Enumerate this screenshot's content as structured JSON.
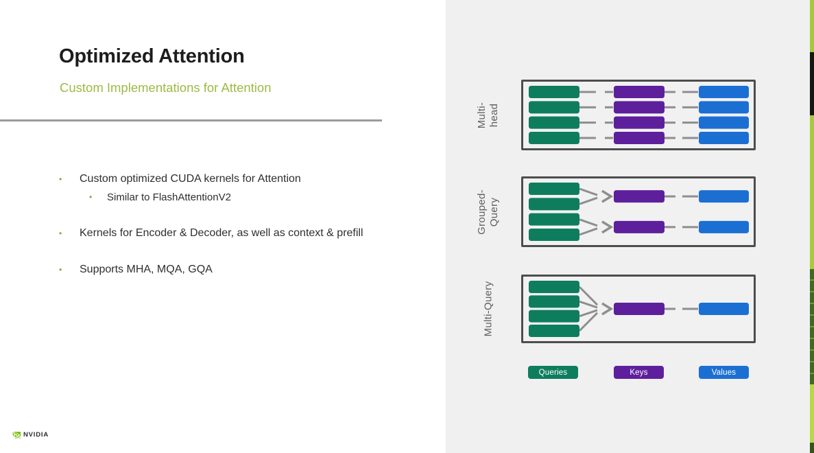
{
  "slide": {
    "title": "Optimized Attention",
    "subtitle": "Custom Implementations for Attention",
    "bullets": [
      {
        "level": 1,
        "text": "Custom optimized CUDA kernels for Attention"
      },
      {
        "level": 2,
        "text": "Similar to FlashAttentionV2"
      },
      {
        "level": 1,
        "text": "Kernels for Encoder & Decoder, as well as context & prefill"
      },
      {
        "level": 1,
        "text": "Supports MHA, MQA, GQA"
      }
    ],
    "footer_logo": "NVIDIA"
  },
  "colors": {
    "query_green": "#0e7d5e",
    "key_purple": "#5e1f9c",
    "value_blue": "#1c6fd2",
    "accent_lime": "#9cba45",
    "brand_green": "#76b900",
    "connector_gray": "#8e8e8e",
    "box_border": "#4d4d4d"
  },
  "diagram": {
    "panels": [
      {
        "name": "multi-head",
        "label_lines": [
          "Multi-",
          "head"
        ],
        "queries": 4,
        "keys": 4,
        "values": 4
      },
      {
        "name": "grouped-query",
        "label_lines": [
          "Grouped-",
          "Query"
        ],
        "queries": 4,
        "keys": 2,
        "values": 2
      },
      {
        "name": "multi-query",
        "label_lines": [
          "Multi-Query"
        ],
        "queries": 4,
        "keys": 1,
        "values": 1
      }
    ],
    "legend": [
      {
        "label": "Queries",
        "color_key": "query_green"
      },
      {
        "label": "Keys",
        "color_key": "key_purple"
      },
      {
        "label": "Values",
        "color_key": "value_blue"
      }
    ]
  }
}
